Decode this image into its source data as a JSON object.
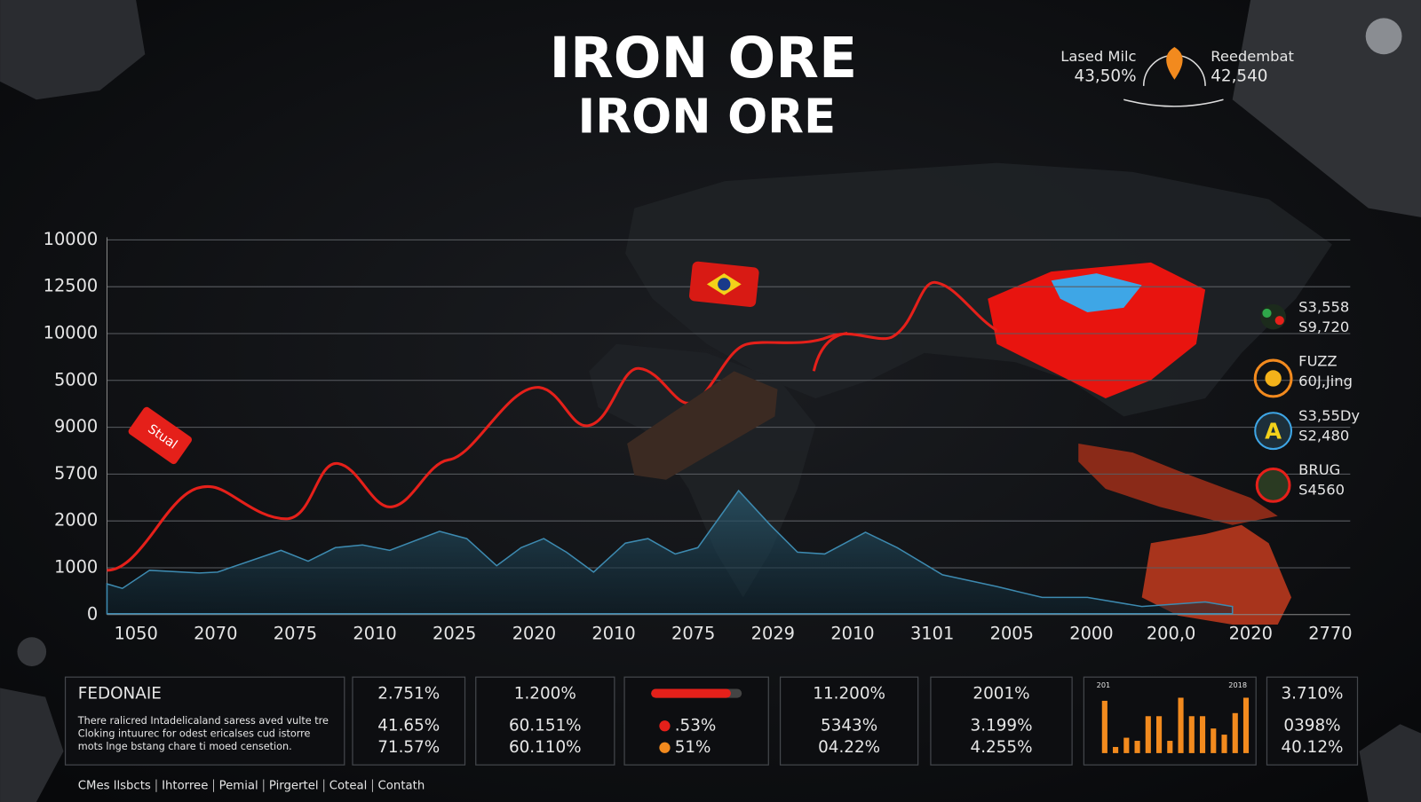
{
  "title": [
    "IRON ORE",
    "IRON ORE"
  ],
  "top_legend": [
    {
      "label": "Lased Milc",
      "value": "43,50%"
    },
    {
      "label": "Reedembat",
      "value": "42,540"
    }
  ],
  "y_labels": [
    "10000",
    "12500",
    "10000",
    "5000",
    "9000",
    "5700",
    "2000",
    "1000",
    "0"
  ],
  "x_labels": [
    "1050",
    "2070",
    "2075",
    "2010",
    "2025",
    "2020",
    "2010",
    "2075",
    "2029",
    "2010",
    "3101",
    "2005",
    "2000",
    "200,0",
    "2020",
    "2770"
  ],
  "tag": "Stual",
  "side_items": [
    {
      "line1": "S3,558",
      "line2": "S9,720"
    },
    {
      "line1": "FUZZ",
      "line2": "60J,Jing"
    },
    {
      "line1": "S3,55Dy",
      "line2": "S2,480"
    },
    {
      "line1": "BRUG",
      "line2": "S4560"
    }
  ],
  "panels": [
    {
      "title": "FEDONAIE",
      "text": [
        "There ralicred Intadelicaland saress aved vulte tre",
        "Cloking intuurec for odest ericalses cud istorre",
        "mots lnge bstang chare ti moed censetion."
      ]
    },
    {
      "lines": [
        "2.751%",
        "41.65%",
        "71.57%"
      ]
    },
    {
      "lines": [
        "1.200%",
        "60.151%",
        "60.110%"
      ]
    },
    {
      "lines": [
        ".53%",
        "51%"
      ]
    },
    {
      "lines": [
        "11.200%",
        "5343%",
        "04.22%"
      ]
    },
    {
      "lines": [
        "2001%",
        "3.199%",
        "4.255%"
      ]
    },
    {
      "labels": [
        "201",
        "2018"
      ]
    },
    {
      "lines": [
        "3.710%",
        "0398%",
        "40.12%"
      ]
    }
  ],
  "footer": [
    "CMes llsbcts",
    "Ihtorree",
    "Pemial",
    "Pirgertel",
    "Coteal",
    "Contath"
  ]
}
